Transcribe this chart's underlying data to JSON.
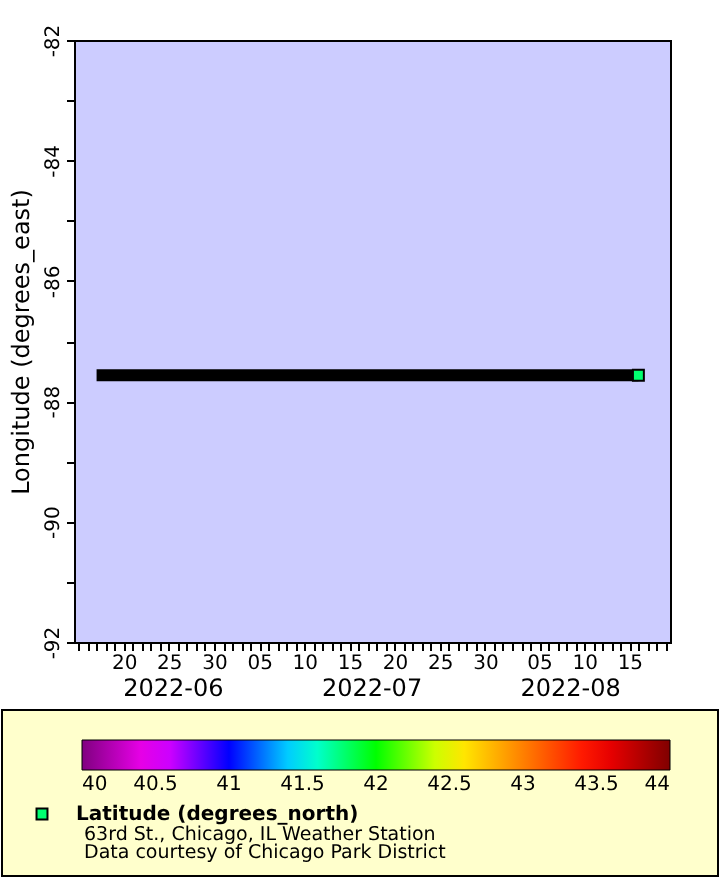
{
  "chart_data": {
    "type": "scatter",
    "ylabel": "Longitude (degrees_east)",
    "xlim": [
      "2022-06-14T12:00",
      "2022-08-19T12:00"
    ],
    "xticks": [
      {
        "value": "2022-06-15",
        "label": null
      },
      {
        "value": "2022-06-16",
        "label": null
      },
      {
        "value": "2022-06-17",
        "label": null
      },
      {
        "value": "2022-06-18",
        "label": null
      },
      {
        "value": "2022-06-19",
        "label": null
      },
      {
        "value": "2022-06-20",
        "label": "20"
      },
      {
        "value": "2022-06-21",
        "label": null
      },
      {
        "value": "2022-06-22",
        "label": null
      },
      {
        "value": "2022-06-23",
        "label": null
      },
      {
        "value": "2022-06-24",
        "label": null
      },
      {
        "value": "2022-06-25",
        "label": "25"
      },
      {
        "value": "2022-06-26",
        "label": null
      },
      {
        "value": "2022-06-27",
        "label": null
      },
      {
        "value": "2022-06-28",
        "label": null
      },
      {
        "value": "2022-06-29",
        "label": null
      },
      {
        "value": "2022-06-30",
        "label": "30"
      },
      {
        "value": "2022-07-01",
        "label": null
      },
      {
        "value": "2022-07-02",
        "label": null
      },
      {
        "value": "2022-07-03",
        "label": null
      },
      {
        "value": "2022-07-04",
        "label": null
      },
      {
        "value": "2022-07-05",
        "label": "05"
      },
      {
        "value": "2022-07-06",
        "label": null
      },
      {
        "value": "2022-07-07",
        "label": null
      },
      {
        "value": "2022-07-08",
        "label": null
      },
      {
        "value": "2022-07-09",
        "label": null
      },
      {
        "value": "2022-07-10",
        "label": "10"
      },
      {
        "value": "2022-07-11",
        "label": null
      },
      {
        "value": "2022-07-12",
        "label": null
      },
      {
        "value": "2022-07-13",
        "label": null
      },
      {
        "value": "2022-07-14",
        "label": null
      },
      {
        "value": "2022-07-15",
        "label": "15"
      },
      {
        "value": "2022-07-16",
        "label": null
      },
      {
        "value": "2022-07-17",
        "label": null
      },
      {
        "value": "2022-07-18",
        "label": null
      },
      {
        "value": "2022-07-19",
        "label": null
      },
      {
        "value": "2022-07-20",
        "label": "20"
      },
      {
        "value": "2022-07-21",
        "label": null
      },
      {
        "value": "2022-07-22",
        "label": null
      },
      {
        "value": "2022-07-23",
        "label": null
      },
      {
        "value": "2022-07-24",
        "label": null
      },
      {
        "value": "2022-07-25",
        "label": "25"
      },
      {
        "value": "2022-07-26",
        "label": null
      },
      {
        "value": "2022-07-27",
        "label": null
      },
      {
        "value": "2022-07-28",
        "label": null
      },
      {
        "value": "2022-07-29",
        "label": null
      },
      {
        "value": "2022-07-30",
        "label": "30"
      },
      {
        "value": "2022-07-31",
        "label": null
      },
      {
        "value": "2022-08-01",
        "label": null
      },
      {
        "value": "2022-08-02",
        "label": null
      },
      {
        "value": "2022-08-03",
        "label": null
      },
      {
        "value": "2022-08-04",
        "label": null
      },
      {
        "value": "2022-08-05",
        "label": "05"
      },
      {
        "value": "2022-08-06",
        "label": null
      },
      {
        "value": "2022-08-07",
        "label": null
      },
      {
        "value": "2022-08-08",
        "label": null
      },
      {
        "value": "2022-08-09",
        "label": null
      },
      {
        "value": "2022-08-10",
        "label": "10"
      },
      {
        "value": "2022-08-11",
        "label": null
      },
      {
        "value": "2022-08-12",
        "label": null
      },
      {
        "value": "2022-08-13",
        "label": null
      },
      {
        "value": "2022-08-14",
        "label": null
      },
      {
        "value": "2022-08-15",
        "label": "15"
      },
      {
        "value": "2022-08-16",
        "label": null
      },
      {
        "value": "2022-08-17",
        "label": null
      },
      {
        "value": "2022-08-18",
        "label": null
      },
      {
        "value": "2022-08-19",
        "label": null
      }
    ],
    "ylim": [
      -92,
      -82
    ],
    "yticks": [
      -92,
      {
        "value": -91,
        "label": null
      },
      -90,
      {
        "value": -89,
        "label": null
      },
      -88,
      {
        "value": -87,
        "label": null
      },
      -86,
      {
        "value": -85,
        "label": null
      },
      -84,
      {
        "value": -83,
        "label": null
      },
      -82
    ],
    "series": [
      {
        "type": "line",
        "color": "#000000",
        "x": [
          "2022-06-17",
          "2022-08-16"
        ],
        "values": [
          -87.57,
          -87.57
        ]
      },
      {
        "type": "scatter",
        "name": "Latitude (degrees_north)",
        "color": "#00ff70",
        "x": [
          "2022-08-16"
        ],
        "values": [
          -87.57
        ],
        "cvalues": [
          41.78
        ],
        "marker": "square"
      }
    ],
    "clim": [
      40,
      44
    ],
    "cticks": [
      40,
      40.5,
      41,
      41.5,
      42,
      42.5,
      43,
      43.5,
      44
    ],
    "grid": false,
    "annotations": [
      "2022-06",
      "2022-07",
      "2022-08",
      "63rd St., Chicago, IL Weather Station",
      "Data courtesy of Chicago Park District"
    ]
  }
}
